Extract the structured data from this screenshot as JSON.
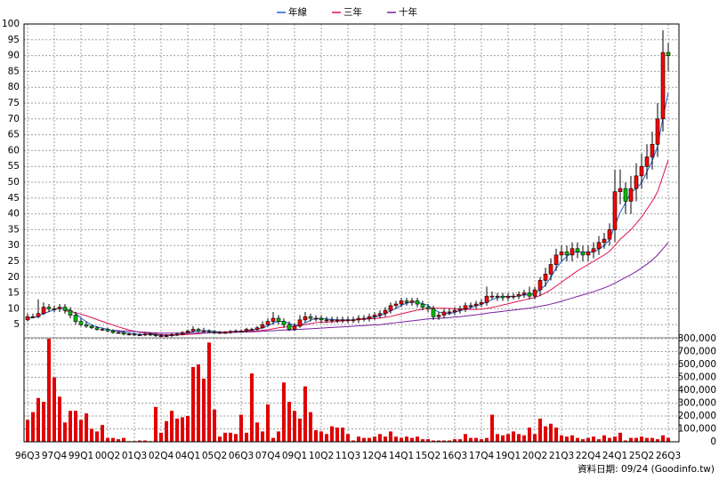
{
  "chart_data": {
    "type": "candlestick",
    "categories": [
      "96Q3",
      null,
      null,
      null,
      null,
      "97Q4",
      null,
      null,
      null,
      null,
      "99Q1",
      null,
      null,
      null,
      null,
      "00Q2",
      null,
      null,
      null,
      null,
      "01Q3",
      null,
      null,
      null,
      null,
      "02Q4",
      null,
      null,
      null,
      null,
      "04Q1",
      null,
      null,
      null,
      null,
      "05Q2",
      null,
      null,
      null,
      null,
      "06Q3",
      null,
      null,
      null,
      null,
      "07Q4",
      null,
      null,
      null,
      null,
      "09Q1",
      null,
      null,
      null,
      null,
      "10Q2",
      null,
      null,
      null,
      null,
      "11Q3",
      null,
      null,
      null,
      null,
      "12Q4",
      null,
      null,
      null,
      null,
      "14Q1",
      null,
      null,
      null,
      null,
      "15Q2",
      null,
      null,
      null,
      null,
      "16Q3",
      null,
      null,
      null,
      null,
      "17Q4",
      null,
      null,
      null,
      null,
      "19Q1",
      null,
      null,
      null,
      null,
      "20Q2",
      null,
      null,
      null,
      null,
      "21Q3",
      null,
      null,
      null,
      null,
      "22Q4",
      null,
      null,
      null,
      null,
      "24Q1",
      null,
      null,
      null,
      null,
      "25Q2",
      null,
      null,
      null,
      null,
      "26Q3"
    ],
    "open": [
      6.5,
      7.5,
      7.5,
      8.5,
      10.5,
      10,
      10,
      10.5,
      9.5,
      8,
      6,
      5,
      4.5,
      4,
      3.5,
      3.5,
      3,
      2.5,
      2.5,
      2,
      2,
      1.8,
      1.8,
      2,
      1.8,
      1.5,
      1.5,
      1.5,
      1.8,
      2,
      2.5,
      3,
      3.5,
      3,
      3,
      2.8,
      2.5,
      2.5,
      2.5,
      2.8,
      3,
      3,
      3.5,
      3.5,
      4,
      5,
      6,
      7,
      6,
      5,
      3.5,
      4.5,
      6.5,
      7.5,
      7,
      7,
      6.5,
      6.5,
      6.5,
      6.5,
      6.5,
      6.5,
      6.5,
      7,
      7,
      7.5,
      8,
      8.5,
      9.5,
      11,
      11.5,
      12.5,
      12,
      12.5,
      11.5,
      10.5,
      10,
      7.5,
      8,
      9,
      9,
      9.5,
      10,
      11,
      11,
      11.5,
      12,
      14,
      14,
      14,
      13.5,
      14,
      14,
      14.5,
      15,
      14,
      16,
      19,
      21,
      24,
      27,
      28,
      27,
      29,
      28,
      27,
      28,
      29,
      31,
      32,
      35,
      47,
      48,
      44,
      48,
      52,
      55,
      58,
      62,
      70,
      91
    ],
    "high": [
      8.5,
      8.5,
      13,
      12,
      11.5,
      11,
      11.5,
      11.5,
      10.5,
      9,
      7,
      6,
      5,
      4.5,
      4,
      4,
      3.5,
      3,
      3,
      2.5,
      2.5,
      2.3,
      2.5,
      2.5,
      2.3,
      2,
      2,
      2.3,
      2.5,
      3,
      3.5,
      4.5,
      4,
      4,
      3.5,
      3.3,
      3,
      3,
      3.3,
      3.5,
      3.5,
      4,
      4,
      4.5,
      6,
      7,
      9,
      8,
      7,
      6,
      5.5,
      8,
      9,
      8.5,
      8,
      8,
      7.5,
      7.5,
      7.5,
      7.5,
      7.5,
      7.5,
      8,
      8,
      8.5,
      9,
      9.5,
      10.5,
      12,
      12.5,
      13.5,
      13.5,
      13.5,
      13.5,
      12.5,
      11.5,
      11,
      9,
      10,
      10,
      10.5,
      11,
      12,
      12,
      12.5,
      13,
      17,
      15.5,
      15,
      15,
      15,
      15,
      15.5,
      16,
      17,
      17,
      20,
      23,
      26,
      29,
      30,
      30,
      31,
      31,
      30,
      30,
      31,
      33,
      34,
      37,
      54,
      54,
      50,
      52,
      56,
      59,
      62,
      66,
      75,
      98,
      94
    ],
    "low": [
      6,
      7,
      7,
      8,
      9,
      9,
      9,
      8.5,
      7,
      5,
      4.5,
      4,
      3.6,
      3.1,
      3.1,
      2.6,
      2.1,
      2.1,
      1.6,
      1.6,
      1.4,
      1.4,
      1.4,
      1.4,
      1.1,
      1.1,
      1.1,
      1.1,
      1.4,
      1.6,
      2.1,
      2.6,
      2.6,
      2.6,
      2.4,
      2.1,
      2.1,
      2.1,
      2.1,
      2.4,
      2.6,
      2.6,
      3.1,
      3.1,
      3.6,
      4.5,
      5,
      5,
      4,
      3,
      3,
      4,
      5.5,
      6,
      6,
      5.5,
      5.5,
      5.5,
      5.5,
      5.5,
      5.5,
      5.5,
      5.5,
      6,
      6,
      6.5,
      7,
      7.5,
      8.5,
      10,
      10.5,
      11,
      11,
      10.5,
      9.5,
      9,
      6.5,
      6.5,
      7,
      8,
      8,
      8.5,
      9,
      10,
      10,
      10.5,
      11,
      13,
      12.5,
      12.5,
      12.5,
      13,
      13,
      13.5,
      13,
      13,
      14,
      17,
      19,
      22,
      25,
      25,
      25,
      26,
      25,
      25,
      26,
      27,
      29,
      30,
      31,
      43,
      40,
      40,
      44,
      48,
      51,
      54,
      58,
      66,
      85
    ],
    "close": [
      7.5,
      7.5,
      8.5,
      10.5,
      10,
      10,
      10.5,
      9.5,
      8,
      6,
      5,
      4.5,
      4,
      3.5,
      3.5,
      3,
      2.5,
      2.5,
      2,
      2,
      1.8,
      1.8,
      2,
      1.8,
      1.5,
      1.5,
      1.5,
      1.8,
      2,
      2.5,
      3,
      3.5,
      3,
      3,
      2.8,
      2.5,
      2.5,
      2.5,
      2.8,
      3,
      3,
      3.5,
      3.5,
      4,
      5,
      6,
      7,
      6,
      5,
      3.5,
      4.5,
      6.5,
      7.5,
      7,
      7,
      6.5,
      6.5,
      6.5,
      6.5,
      6.5,
      6.5,
      6.5,
      7,
      7,
      7.5,
      8,
      8.5,
      9.5,
      11,
      11.5,
      12.5,
      12,
      12.5,
      11.5,
      10.5,
      10,
      7.5,
      8,
      9,
      9,
      9.5,
      10,
      11,
      11,
      11.5,
      12,
      14,
      14,
      14,
      13.5,
      14,
      14,
      14.5,
      15,
      14,
      16,
      19,
      21,
      24,
      27,
      28,
      27,
      29,
      28,
      27,
      28,
      29,
      31,
      32,
      35,
      47,
      48,
      44,
      48,
      52,
      55,
      58,
      62,
      70,
      91,
      90
    ],
    "up_color": "#ff0000",
    "down_color": "#00c000",
    "series": [
      {
        "name": "年線",
        "color": "#1f5fd0",
        "values": [
          7,
          7.2,
          7.6,
          8.5,
          9.1,
          9.8,
          10.3,
          10,
          9.5,
          8.5,
          7.1,
          5.9,
          4.9,
          4.3,
          3.9,
          3.5,
          3.1,
          2.9,
          2.5,
          2.3,
          2.1,
          1.9,
          1.9,
          1.9,
          1.8,
          1.7,
          1.6,
          1.6,
          1.7,
          2,
          2.3,
          2.8,
          3,
          3.1,
          3.1,
          2.8,
          2.7,
          2.6,
          2.6,
          2.7,
          2.8,
          3.1,
          3.3,
          3.5,
          4,
          4.6,
          5.5,
          6,
          6,
          5.4,
          4.8,
          4.9,
          5.5,
          6.4,
          7,
          7,
          6.8,
          6.6,
          6.5,
          6.5,
          6.5,
          6.5,
          6.6,
          6.8,
          7.1,
          7.4,
          7.8,
          8.4,
          9.4,
          10.1,
          11.1,
          11.8,
          12.1,
          12.1,
          11.6,
          11.1,
          9.9,
          9,
          8.6,
          8.4,
          8.9,
          9.4,
          9.9,
          10.4,
          10.9,
          11.4,
          12.1,
          12.9,
          13.5,
          13.9,
          13.9,
          13.9,
          14,
          14.4,
          14.4,
          14.9,
          16,
          17.5,
          20,
          22.8,
          25,
          26.5,
          27.8,
          28,
          27.8,
          28,
          28,
          28.8,
          30,
          31.8,
          36.3,
          40.5,
          43.5,
          46.8,
          48,
          49.8,
          53.3,
          56.8,
          61.3,
          70.3,
          78.3
        ]
      },
      {
        "name": "三年",
        "color": "#e0104a",
        "values": [
          null,
          null,
          null,
          null,
          null,
          null,
          null,
          9.3,
          9.2,
          8.8,
          8.3,
          7.8,
          7.2,
          6.6,
          6,
          5.4,
          4.9,
          4.3,
          3.8,
          3.3,
          2.9,
          2.6,
          2.4,
          2.2,
          2,
          1.9,
          1.8,
          1.8,
          1.8,
          1.8,
          1.9,
          2,
          2.1,
          2.3,
          2.4,
          2.5,
          2.6,
          2.7,
          2.8,
          2.8,
          2.8,
          2.9,
          2.9,
          3,
          3.2,
          3.4,
          3.7,
          4,
          4.2,
          4.4,
          4.5,
          4.7,
          5,
          5.3,
          5.6,
          5.8,
          5.8,
          5.9,
          6,
          6.2,
          6.3,
          6.5,
          6.6,
          6.7,
          6.8,
          6.9,
          7.1,
          7.3,
          7.6,
          8,
          8.4,
          8.8,
          9.2,
          9.6,
          9.9,
          10.1,
          10.2,
          10.2,
          10.2,
          10.1,
          10,
          9.9,
          9.8,
          9.8,
          9.8,
          9.9,
          10.1,
          10.4,
          10.8,
          11.2,
          11.6,
          12,
          12.4,
          12.8,
          13.2,
          13.6,
          14.2,
          15,
          16,
          17.2,
          18.4,
          19.6,
          20.8,
          22,
          23,
          24,
          25,
          26,
          27,
          28.2,
          30,
          32,
          33.5,
          35,
          37,
          39,
          41.5,
          44,
          47,
          52,
          57
        ]
      },
      {
        "name": "十年",
        "color": "#7a1fa0",
        "values": [
          null,
          null,
          null,
          null,
          null,
          null,
          null,
          null,
          null,
          null,
          null,
          null,
          null,
          null,
          null,
          null,
          3.2,
          3.1,
          3,
          2.9,
          2.8,
          2.7,
          2.6,
          2.5,
          2.4,
          2.3,
          2.3,
          2.3,
          2.3,
          2.3,
          2.3,
          2.3,
          2.4,
          2.4,
          2.4,
          2.4,
          2.5,
          2.5,
          2.5,
          2.6,
          2.6,
          2.7,
          2.7,
          2.8,
          2.9,
          3,
          3.1,
          3.2,
          3.3,
          3.3,
          3.4,
          3.5,
          3.6,
          3.7,
          3.8,
          3.9,
          4,
          4.1,
          4.2,
          4.3,
          4.4,
          4.5,
          4.6,
          4.7,
          4.8,
          4.9,
          5,
          5.2,
          5.4,
          5.6,
          5.8,
          6,
          6.2,
          6.4,
          6.6,
          6.8,
          6.9,
          7,
          7.1,
          7.2,
          7.4,
          7.5,
          7.7,
          7.9,
          8.1,
          8.3,
          8.6,
          8.8,
          9,
          9.2,
          9.4,
          9.6,
          9.8,
          10,
          10.2,
          10.5,
          10.8,
          11.1,
          11.5,
          11.9,
          12.4,
          12.9,
          13.4,
          13.9,
          14.4,
          14.9,
          15.4,
          16,
          16.6,
          17.3,
          18.1,
          19,
          19.9,
          20.8,
          21.8,
          22.9,
          24.1,
          25.4,
          27,
          29,
          31
        ]
      }
    ],
    "ylim": [
      0,
      100
    ],
    "yticks": [
      5,
      10,
      15,
      20,
      25,
      30,
      35,
      40,
      45,
      50,
      55,
      60,
      65,
      70,
      75,
      80,
      85,
      90,
      95,
      100
    ],
    "volume": {
      "color": "#e00000",
      "values": [
        170000,
        230000,
        340000,
        310000,
        800000,
        500000,
        350000,
        150000,
        240000,
        240000,
        170000,
        220000,
        100000,
        80000,
        130000,
        30000,
        30000,
        20000,
        30000,
        5000,
        5000,
        10000,
        10000,
        5000,
        270000,
        70000,
        160000,
        240000,
        180000,
        190000,
        200000,
        580000,
        600000,
        490000,
        770000,
        250000,
        40000,
        70000,
        70000,
        60000,
        210000,
        70000,
        530000,
        150000,
        80000,
        290000,
        30000,
        80000,
        460000,
        310000,
        240000,
        180000,
        430000,
        230000,
        90000,
        80000,
        60000,
        120000,
        110000,
        110000,
        60000,
        10000,
        40000,
        30000,
        30000,
        40000,
        60000,
        40000,
        80000,
        40000,
        30000,
        40000,
        30000,
        40000,
        20000,
        20000,
        10000,
        10000,
        10000,
        10000,
        20000,
        20000,
        60000,
        30000,
        30000,
        20000,
        30000,
        210000,
        60000,
        50000,
        60000,
        80000,
        60000,
        50000,
        110000,
        60000,
        180000,
        120000,
        140000,
        110000,
        50000,
        40000,
        50000,
        30000,
        20000,
        30000,
        40000,
        20000,
        50000,
        30000,
        40000,
        70000,
        10000,
        30000,
        30000,
        40000,
        30000,
        30000,
        20000,
        50000,
        30000
      ],
      "ylim": [
        0,
        800000
      ],
      "yticks": [
        0,
        {
          "value": 100000,
          "label": "100,000"
        },
        {
          "value": 200000,
          "label": "200,000"
        },
        {
          "value": 300000,
          "label": "300,000"
        },
        {
          "value": 400000,
          "label": "400,000"
        },
        {
          "value": 500000,
          "label": "500,000"
        },
        {
          "value": 600000,
          "label": "600,000"
        },
        {
          "value": 700000,
          "label": "700,000"
        },
        {
          "value": 800000,
          "label": "800,000"
        }
      ]
    },
    "grid": true,
    "legend": "top",
    "footer": "資料日期: 09/24 (Goodinfo.tw)"
  }
}
